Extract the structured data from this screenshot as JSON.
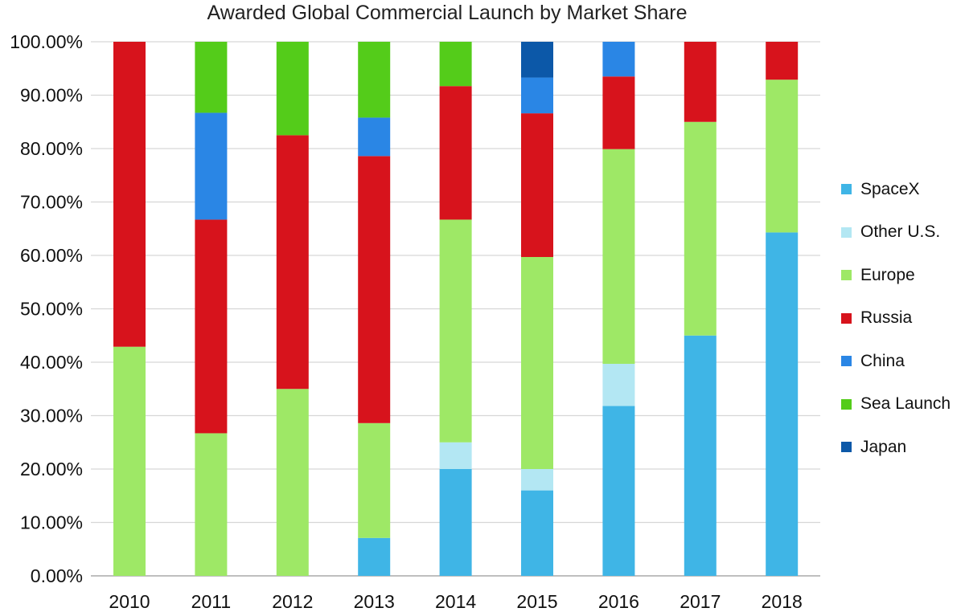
{
  "chart_data": {
    "type": "bar",
    "stacked": true,
    "title": "Awarded Global Commercial Launch by Market Share",
    "xlabel": "",
    "ylabel": "",
    "ylim": [
      0,
      100
    ],
    "y_ticks": [
      "0.00%",
      "10.00%",
      "20.00%",
      "30.00%",
      "40.00%",
      "50.00%",
      "60.00%",
      "70.00%",
      "80.00%",
      "90.00%",
      "100.00%"
    ],
    "grid": true,
    "legend_position": "right",
    "categories": [
      "2010",
      "2011",
      "2012",
      "2013",
      "2014",
      "2015",
      "2016",
      "2017",
      "2018"
    ],
    "series": [
      {
        "name": "SpaceX",
        "color": "#3fb5e6",
        "values": [
          0,
          0,
          0,
          7.1,
          20.0,
          16.0,
          31.8,
          45.0,
          64.3
        ]
      },
      {
        "name": "Other U.S.",
        "color": "#b3e7f3",
        "values": [
          0,
          0,
          0,
          0,
          5.0,
          4.0,
          7.9,
          0,
          0
        ]
      },
      {
        "name": "Europe",
        "color": "#9ee866",
        "values": [
          42.9,
          26.7,
          35.0,
          21.5,
          41.7,
          39.7,
          40.2,
          40.0,
          28.6
        ]
      },
      {
        "name": "Russia",
        "color": "#d7131c",
        "values": [
          57.1,
          40.0,
          47.5,
          50.0,
          25.0,
          26.9,
          13.6,
          15.0,
          7.1
        ]
      },
      {
        "name": "China",
        "color": "#2a86e5",
        "values": [
          0,
          20.0,
          0,
          7.2,
          0,
          6.7,
          6.5,
          0,
          0
        ]
      },
      {
        "name": "Sea Launch",
        "color": "#54cc1a",
        "values": [
          0,
          13.3,
          17.5,
          14.2,
          8.3,
          0,
          0,
          0,
          0
        ]
      },
      {
        "name": "Japan",
        "color": "#0c58a8",
        "values": [
          0,
          0,
          0,
          0,
          0,
          6.7,
          0,
          0,
          0
        ]
      }
    ]
  }
}
